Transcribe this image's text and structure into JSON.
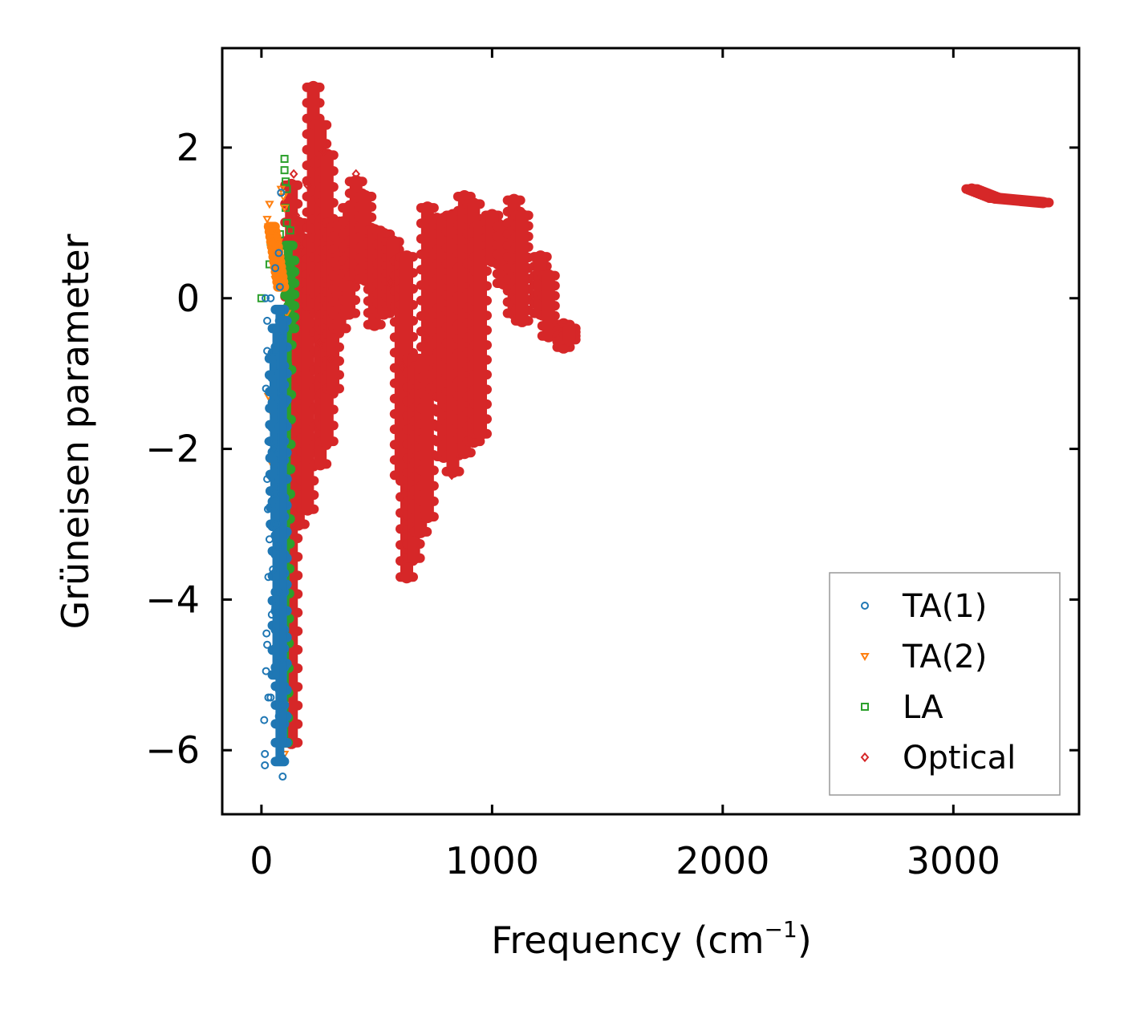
{
  "chart_data": {
    "type": "scatter",
    "title": "",
    "xlabel": "Frequency (cm",
    "xlabel_sup": "−1",
    "xlabel_close": ")",
    "ylabel": "Grüneisen parameter",
    "xlim": [
      -170,
      3545
    ],
    "ylim": [
      -6.85,
      3.32
    ],
    "xticks": [
      0,
      1000,
      2000,
      3000
    ],
    "xtick_labels": [
      "0",
      "1000",
      "2000",
      "3000"
    ],
    "yticks": [
      -6,
      -4,
      -2,
      0,
      2
    ],
    "ytick_labels": [
      "−6",
      "−4",
      "−2",
      "0",
      "2"
    ],
    "grid": false,
    "legend_position": "lower-right",
    "series": [
      {
        "name": "TA(1)",
        "marker": "circle",
        "color": "#1f77b4",
        "points": [
          [
            15,
            -6.2
          ],
          [
            15,
            -6.05
          ],
          [
            12,
            -5.6
          ],
          [
            20,
            -4.95
          ],
          [
            25,
            -4.6
          ],
          [
            22,
            -4.45
          ],
          [
            30,
            -3.7
          ],
          [
            35,
            -3.2
          ],
          [
            28,
            -2.8
          ],
          [
            25,
            -2.4
          ],
          [
            30,
            -1.9
          ],
          [
            20,
            -1.2
          ],
          [
            25,
            -0.7
          ],
          [
            25,
            -0.3
          ],
          [
            18,
            0.0
          ],
          [
            40,
            0.0
          ],
          [
            60,
            0.4
          ],
          [
            75,
            0.6
          ],
          [
            80,
            0.15
          ],
          [
            90,
            -0.5
          ],
          [
            85,
            -1.3
          ],
          [
            55,
            -2.0
          ],
          [
            60,
            -2.6
          ],
          [
            70,
            -3.3
          ],
          [
            75,
            -3.9
          ],
          [
            60,
            -4.1
          ],
          [
            88,
            -4.8
          ],
          [
            92,
            -5.4
          ],
          [
            90,
            -6.1
          ],
          [
            92,
            -6.35
          ],
          [
            85,
            1.4
          ],
          [
            65,
            -3.0
          ],
          [
            50,
            -3.6
          ],
          [
            45,
            -4.2
          ],
          [
            40,
            -5.3
          ],
          [
            30,
            -5.3
          ]
        ],
        "dense_segments": [
          [
            [
              80,
              -0.15
            ],
            [
              80,
              -6.15
            ],
            11,
            24
          ],
          [
            [
              65,
              -0.4
            ],
            [
              65,
              -5.0
            ],
            10,
            14
          ],
          [
            [
              50,
              -0.8
            ],
            [
              55,
              -3.0
            ],
            9,
            10
          ],
          [
            [
              95,
              -0.3
            ],
            [
              95,
              -5.9
            ],
            9,
            16
          ]
        ]
      },
      {
        "name": "TA(2)",
        "marker": "triangle-down",
        "color": "#ff7f0e",
        "points": [
          [
            25,
            1.05
          ],
          [
            30,
            0.95
          ],
          [
            38,
            0.8
          ],
          [
            45,
            0.7
          ],
          [
            55,
            0.6
          ],
          [
            65,
            0.5
          ],
          [
            75,
            0.75
          ],
          [
            85,
            1.45
          ],
          [
            95,
            1.35
          ],
          [
            100,
            1.2
          ],
          [
            60,
            0.25
          ],
          [
            50,
            0.9
          ],
          [
            35,
            1.25
          ],
          [
            40,
            -1.5
          ],
          [
            30,
            -1.3
          ],
          [
            45,
            -2.2
          ],
          [
            70,
            -3.4
          ],
          [
            85,
            -4.6
          ],
          [
            100,
            -5.4
          ],
          [
            100,
            -6.05
          ],
          [
            90,
            -4.1
          ],
          [
            80,
            -3.0
          ],
          [
            110,
            -0.2
          ],
          [
            105,
            -1.0
          ]
        ],
        "dense_segments": [
          [
            [
              45,
              0.95
            ],
            [
              85,
              0.15
            ],
            8,
            12
          ]
        ]
      },
      {
        "name": "LA",
        "marker": "square",
        "color": "#2ca02c",
        "points": [
          [
            100,
            1.85
          ],
          [
            100,
            1.7
          ],
          [
            105,
            1.55
          ],
          [
            110,
            1.45
          ],
          [
            105,
            1.2
          ],
          [
            110,
            1.0
          ],
          [
            125,
            0.9
          ],
          [
            115,
            0.6
          ],
          [
            130,
            0.3
          ],
          [
            120,
            -0.2
          ],
          [
            100,
            -0.5
          ],
          [
            115,
            -0.9
          ],
          [
            95,
            -1.6
          ],
          [
            90,
            -2.3
          ],
          [
            95,
            -3.1
          ],
          [
            90,
            -3.8
          ],
          [
            95,
            -4.7
          ],
          [
            95,
            -5.5
          ],
          [
            95,
            -5.85
          ],
          [
            60,
            0.8
          ],
          [
            40,
            0.75
          ],
          [
            35,
            0.45
          ],
          [
            0,
            0.0
          ],
          [
            75,
            0.55
          ],
          [
            80,
            0.85
          ]
        ],
        "dense_segments": [
          [
            [
              120,
              0.7
            ],
            [
              100,
              -5.9
            ],
            9,
            20
          ],
          [
            [
              130,
              0.5
            ],
            [
              130,
              -0.4
            ],
            8,
            6
          ]
        ]
      },
      {
        "name": "Optical",
        "marker": "diamond",
        "color": "#d62728",
        "points": [
          [
            140,
            1.65
          ],
          [
            270,
            1.95
          ],
          [
            410,
            1.65
          ],
          [
            825,
            -2.35
          ],
          [
            145,
            -3.0
          ],
          [
            140,
            -2.85
          ],
          [
            130,
            1.35
          ],
          [
            150,
            1.1
          ],
          [
            160,
            0.7
          ],
          [
            300,
            -0.8
          ],
          [
            250,
            -0.6
          ],
          [
            200,
            1.5
          ],
          [
            610,
            -0.9
          ],
          [
            560,
            0.2
          ],
          [
            710,
            -0.5
          ]
        ],
        "dense_segments": [
          [
            [
              130,
              1.5
            ],
            [
              130,
              -5.9
            ],
            16,
            30
          ],
          [
            [
              160,
              1.0
            ],
            [
              160,
              -3.0
            ],
            16,
            20
          ],
          [
            [
              200,
              0.6
            ],
            [
              200,
              -2.8
            ],
            16,
            18
          ],
          [
            [
              225,
              2.8
            ],
            [
              225,
              -0.1
            ],
            16,
            14
          ],
          [
            [
              255,
              2.3
            ],
            [
              255,
              -2.2
            ],
            16,
            18
          ],
          [
            [
              285,
              1.9
            ],
            [
              285,
              -1.9
            ],
            16,
            18
          ],
          [
            [
              310,
              1.0
            ],
            [
              310,
              -1.2
            ],
            16,
            12
          ],
          [
            [
              340,
              1.0
            ],
            [
              340,
              -0.4
            ],
            16,
            8
          ],
          [
            [
              380,
              1.2
            ],
            [
              380,
              -0.2
            ],
            16,
            8
          ],
          [
            [
              410,
              1.55
            ],
            [
              410,
              0.3
            ],
            16,
            8
          ],
          [
            [
              450,
              1.35
            ],
            [
              450,
              0.25
            ],
            16,
            8
          ],
          [
            [
              490,
              0.9
            ],
            [
              490,
              -0.35
            ],
            16,
            8
          ],
          [
            [
              530,
              0.85
            ],
            [
              530,
              -0.2
            ],
            16,
            8
          ],
          [
            [
              570,
              0.75
            ],
            [
              570,
              -0.1
            ],
            16,
            8
          ],
          [
            [
              605,
              0.5
            ],
            [
              605,
              -2.35
            ],
            16,
            14
          ],
          [
            [
              630,
              0.55
            ],
            [
              630,
              -3.7
            ],
            16,
            20
          ],
          [
            [
              660,
              -0.8
            ],
            [
              660,
              -3.45
            ],
            16,
            14
          ],
          [
            [
              690,
              -0.9
            ],
            [
              690,
              -3.1
            ],
            16,
            12
          ],
          [
            [
              720,
              1.2
            ],
            [
              720,
              -2.9
            ],
            16,
            20
          ],
          [
            [
              760,
              1.05
            ],
            [
              760,
              -1.2
            ],
            16,
            12
          ],
          [
            [
              790,
              1.05
            ],
            [
              790,
              -2.1
            ],
            16,
            16
          ],
          [
            [
              830,
              1.1
            ],
            [
              830,
              -2.3
            ],
            16,
            16
          ],
          [
            [
              880,
              1.35
            ],
            [
              880,
              -2.05
            ],
            16,
            18
          ],
          [
            [
              920,
              1.25
            ],
            [
              920,
              -1.9
            ],
            16,
            16
          ],
          [
            [
              950,
              0.95
            ],
            [
              950,
              -1.8
            ],
            16,
            14
          ],
          [
            [
              1000,
              1.1
            ],
            [
              1000,
              0.5
            ],
            16,
            6
          ],
          [
            [
              1050,
              0.95
            ],
            [
              1050,
              0.2
            ],
            16,
            6
          ],
          [
            [
              1095,
              1.3
            ],
            [
              1095,
              -0.2
            ],
            16,
            10
          ],
          [
            [
              1130,
              1.1
            ],
            [
              1130,
              -0.3
            ],
            16,
            10
          ],
          [
            [
              1210,
              0.55
            ],
            [
              1210,
              -0.2
            ],
            16,
            6
          ],
          [
            [
              1245,
              0.3
            ],
            [
              1245,
              -0.5
            ],
            16,
            6
          ],
          [
            [
              1310,
              -0.35
            ],
            [
              1310,
              -0.65
            ],
            16,
            4
          ],
          [
            [
              1335,
              -0.4
            ],
            [
              1335,
              -0.55
            ],
            16,
            3
          ],
          [
            [
              3080,
              1.45
            ],
            [
              3180,
              1.33
            ],
            14,
            10
          ],
          [
            [
              3180,
              1.33
            ],
            [
              3390,
              1.27
            ],
            14,
            14
          ]
        ]
      }
    ]
  },
  "legend": {
    "items": [
      "TA(1)",
      "TA(2)",
      "LA",
      "Optical"
    ]
  }
}
